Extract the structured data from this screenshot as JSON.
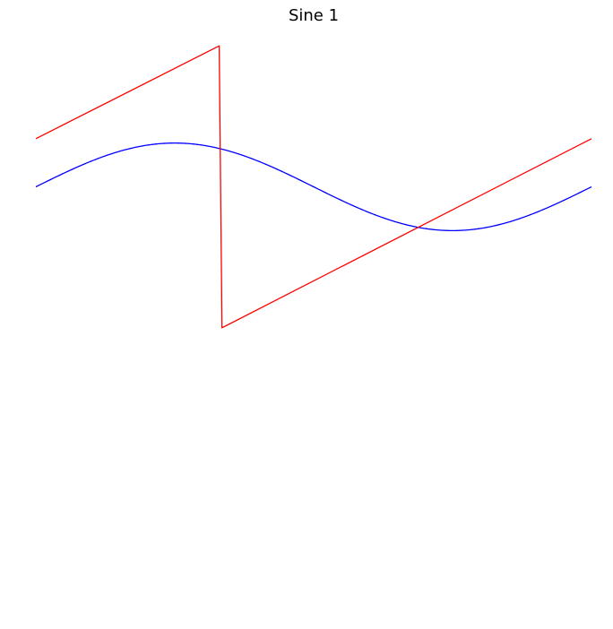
{
  "chart_data": {
    "type": "line",
    "title": "Sine 1",
    "xlabel": "",
    "ylabel": "",
    "grid": false,
    "axes_visible": false,
    "legend": "none",
    "xlim": [
      0,
      1
    ],
    "ylim": [
      -2.84,
      1.09
    ],
    "series": [
      {
        "kind": "sine",
        "color": "#0000ff",
        "amplitude": 0.3,
        "cycles": 1,
        "phase": 0,
        "x": [
          0,
          0.25,
          0.5,
          0.75,
          1
        ],
        "y": [
          0,
          0.3,
          0,
          -0.3,
          0
        ]
      },
      {
        "kind": "sawtooth",
        "color": "#ff0000",
        "x": [
          0,
          0.33,
          0.335,
          1
        ],
        "y": [
          0.33,
          0.966,
          -0.966,
          0.33
        ]
      }
    ]
  }
}
